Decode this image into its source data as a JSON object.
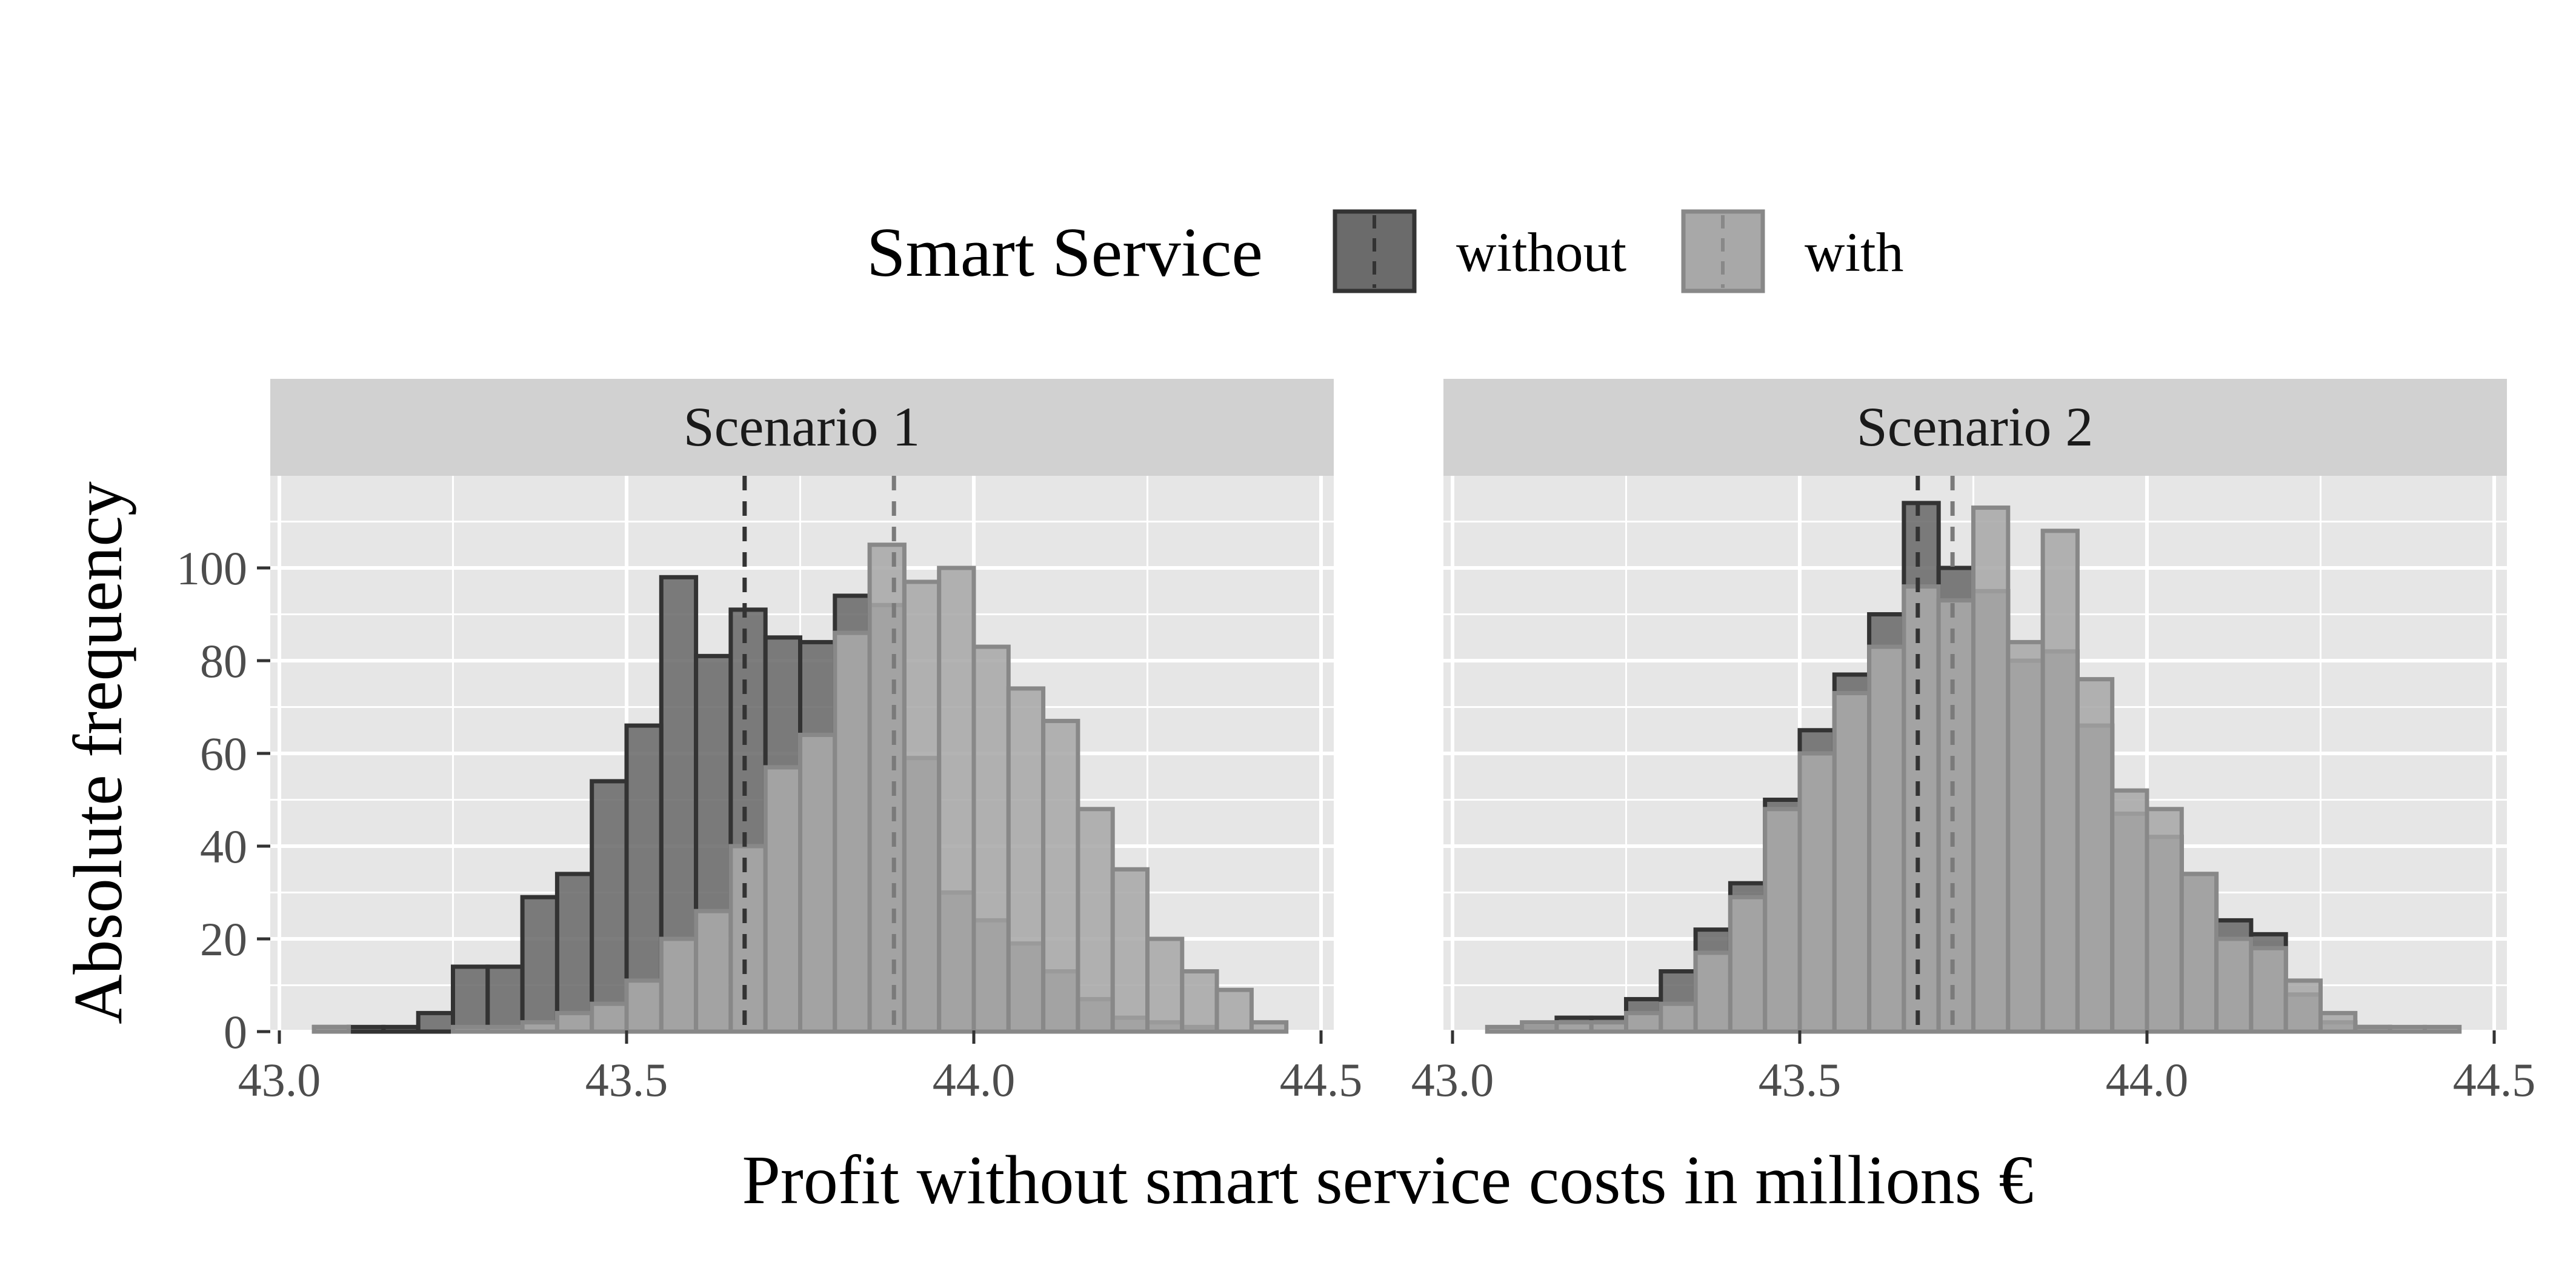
{
  "colors": {
    "without_fill": "#6b6b6b",
    "without_stroke": "#333333",
    "with_fill": "#a8a8a8",
    "with_stroke": "#888888",
    "panel_bg": "#e6e6e6",
    "strip_bg": "#d1d1d1",
    "grid": "#ffffff"
  },
  "legend": {
    "title": "Smart Service",
    "items": [
      {
        "key": "without",
        "label": "without"
      },
      {
        "key": "with",
        "label": "with"
      }
    ],
    "position": "top"
  },
  "axes": {
    "xlabel": "Profit without smart service costs in millions €",
    "ylabel": "Absolute frequency"
  },
  "chart_data": {
    "type": "histogram",
    "bin_width": 0.05,
    "bins_start": 43.05,
    "xlim": [
      43.0,
      44.5
    ],
    "ylim": [
      0,
      115
    ],
    "x_ticks": [
      43.0,
      43.5,
      44.0,
      44.5
    ],
    "x_tick_labels": [
      "43.0",
      "43.5",
      "44.0",
      "44.5"
    ],
    "y_ticks": [
      0,
      20,
      40,
      60,
      80,
      100
    ],
    "y_tick_labels": [
      "0",
      "20",
      "40",
      "60",
      "80",
      "100"
    ],
    "grid": true,
    "panels": [
      {
        "title": "Scenario 1",
        "series": [
          {
            "key": "without",
            "values": [
              1,
              1,
              1,
              4,
              14,
              14,
              29,
              34,
              54,
              66,
              98,
              81,
              91,
              85,
              84,
              94,
              92,
              59,
              30,
              24,
              19,
              13,
              7,
              3,
              2,
              1,
              0,
              0
            ],
            "mean": 43.67
          },
          {
            "key": "with",
            "values": [
              1,
              0,
              0,
              0,
              1,
              1,
              2,
              4,
              6,
              11,
              20,
              26,
              40,
              57,
              64,
              86,
              105,
              97,
              100,
              83,
              74,
              67,
              48,
              35,
              20,
              13,
              9,
              2
            ],
            "mean": 43.885
          }
        ]
      },
      {
        "title": "Scenario 2",
        "series": [
          {
            "key": "without",
            "values": [
              0,
              1,
              3,
              3,
              7,
              13,
              22,
              32,
              50,
              65,
              77,
              90,
              114,
              100,
              95,
              80,
              82,
              66,
              47,
              42,
              34,
              24,
              21,
              8,
              2,
              1,
              0,
              0
            ],
            "mean": 43.67
          },
          {
            "key": "with",
            "values": [
              1,
              2,
              2,
              2,
              4,
              6,
              17,
              29,
              48,
              60,
              73,
              83,
              96,
              93,
              113,
              84,
              108,
              76,
              52,
              48,
              34,
              20,
              18,
              11,
              4,
              1,
              1,
              1
            ],
            "mean": 43.72
          }
        ]
      }
    ]
  }
}
